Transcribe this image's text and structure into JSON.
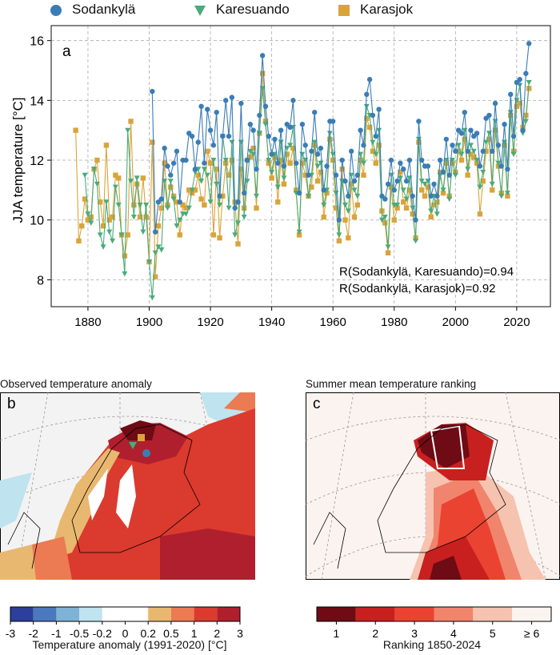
{
  "legend": {
    "items": [
      {
        "name": "Sodankylä",
        "marker": "circle",
        "color": "#3a7db6"
      },
      {
        "name": "Karesuando",
        "marker": "triangle-down",
        "color": "#4aab7b"
      },
      {
        "name": "Karasjok",
        "marker": "square",
        "color": "#d9a43a"
      }
    ]
  },
  "chart_data": [
    {
      "type": "line",
      "panel_label": "a",
      "ylabel": "JJA temperature [°C]",
      "xlim": [
        1868,
        2031
      ],
      "ylim": [
        7.1,
        16.5
      ],
      "xticks": [
        1880,
        1900,
        1920,
        1940,
        1960,
        1980,
        2000,
        2020
      ],
      "yticks": [
        8,
        10,
        12,
        14,
        16
      ],
      "grid": true,
      "annotations": [
        "R(Sodankylä, Karesuando)=0.94",
        "R(Sodankylä, Karasjok)=0.92"
      ],
      "series": [
        {
          "name": "Sodankylä",
          "x_start": 1901,
          "values": [
            14.3,
            9.6,
            10.6,
            10.7,
            12.4,
            11.8,
            11.5,
            11.9,
            12.3,
            10.6,
            12.0,
            12.0,
            12.9,
            12.8,
            11.7,
            12.6,
            13.8,
            11.9,
            13.7,
            13.0,
            12.5,
            13.6,
            10.8,
            12.8,
            14.0,
            12.8,
            14.1,
            10.4,
            10.6,
            13.9,
            10.9,
            12.0,
            13.2,
            13.0,
            11.7,
            13.5,
            15.5,
            13.8,
            12.8,
            12.2,
            12.7,
            11.9,
            13.0,
            11.8,
            13.2,
            13.1,
            14.0,
            11.9,
            10.9,
            13.2,
            12.5,
            11.5,
            12.3,
            13.6,
            12.2,
            12.4,
            11.0,
            11.8,
            13.3,
            13.3,
            11.5,
            10.0,
            12.0,
            11.3,
            10.8,
            12.3,
            11.3,
            11.5,
            13.0,
            12.5,
            14.2,
            14.7,
            13.5,
            12.8,
            13.7,
            10.8,
            10.7,
            11.2,
            12.0,
            11.0,
            11.3,
            11.9,
            11.7,
            11.3,
            12.0,
            10.8,
            10.0,
            13.3,
            12.0,
            11.8,
            11.8,
            10.8,
            11.2,
            10.8,
            12.0,
            11.6,
            12.7,
            11.5,
            12.5,
            12.3,
            13.0,
            12.9,
            13.6,
            12.3,
            13.0,
            12.8,
            12.9,
            11.8,
            12.3,
            13.4,
            13.5,
            12.3,
            13.9,
            12.5,
            11.8,
            13.2,
            11.7,
            14.2,
            12.8,
            14.6,
            14.7,
            13.0,
            14.9,
            15.9
          ]
        },
        {
          "name": "Karesuando",
          "x_start": 1879,
          "values": [
            11.5,
            10.2,
            9.9,
            11.7,
            11.2,
            9.5,
            9.1,
            10.6,
            9.6,
            9.3,
            11.1,
            10.5,
            9.5,
            8.2,
            13.0,
            11.3,
            10.1,
            11.4,
            10.5,
            9.6,
            10.5,
            8.6,
            7.4,
            8.9,
            9.1,
            9.0,
            11.3,
            10.4,
            11.3,
            10.7,
            9.8,
            10.0,
            10.2,
            10.2,
            10.4,
            11.0,
            11.6,
            11.7,
            11.3,
            11.7,
            11.5,
            10.6,
            12.0,
            11.2,
            10.5,
            12.8,
            12.0,
            10.4,
            12.6,
            9.5,
            9.9,
            12.6,
            10.1,
            11.3,
            12.3,
            12.2,
            10.8,
            12.9,
            14.4,
            13.2,
            12.0,
            11.6,
            12.2,
            11.1,
            12.6,
            11.4,
            12.4,
            12.5,
            13.1,
            10.9,
            9.6,
            12.2,
            12.0,
            10.8,
            11.5,
            12.6,
            11.8,
            11.9,
            10.5,
            11.0,
            12.9,
            12.2,
            10.9,
            9.5,
            11.3,
            10.5,
            10.3,
            11.5,
            11.0,
            10.8,
            12.2,
            11.9,
            13.8,
            13.5,
            12.6,
            12.2,
            13.0,
            10.0,
            10.1,
            9.1,
            11.5,
            10.5,
            10.5,
            11.4,
            11.0,
            10.7,
            11.4,
            10.4,
            9.3,
            12.7,
            11.3,
            11.2,
            11.3,
            10.3,
            10.8,
            10.2,
            11.5,
            11.0,
            12.0,
            10.7,
            12.0,
            11.5,
            12.5,
            12.2,
            13.0,
            11.7,
            12.5,
            12.3,
            12.0,
            11.1,
            11.6,
            12.6,
            12.9,
            11.2,
            13.3,
            11.9,
            10.8,
            12.6,
            10.9,
            13.6,
            12.2,
            14.0,
            14.5,
            12.9,
            13.3,
            14.6
          ]
        },
        {
          "name": "Karasjok",
          "x_start": 1876,
          "values": [
            13.0,
            9.3,
            9.8,
            10.7,
            10.0,
            10.1,
            11.7,
            12.0,
            10.6,
            9.8,
            12.5,
            10.0,
            10.1,
            11.5,
            11.4,
            9.5,
            8.8,
            9.5,
            13.3,
            10.5,
            11.2,
            10.1,
            11.4,
            10.1,
            8.6,
            12.6,
            8.1,
            9.8,
            10.4,
            11.9,
            10.5,
            11.1,
            10.8,
            10.6,
            9.5,
            10.5,
            10.4,
            11.0,
            10.9,
            11.0,
            11.5,
            10.7,
            10.5,
            12.3,
            11.9,
            9.5,
            11.7,
            9.4,
            10.8,
            11.9,
            11.5,
            12.0,
            10.6,
            9.2,
            11.7,
            10.4,
            12.0,
            12.1,
            12.4,
            10.4,
            12.9,
            14.9,
            13.3,
            11.9,
            11.4,
            12.1,
            10.6,
            12.0,
            11.2,
            12.2,
            11.9,
            12.4,
            11.0,
            9.5,
            11.9,
            11.5,
            10.8,
            11.1,
            12.5,
            11.3,
            11.6,
            10.1,
            10.9,
            12.7,
            12.0,
            10.4,
            9.3,
            11.7,
            10.0,
            9.4,
            11.2,
            10.1,
            10.5,
            12.0,
            11.5,
            13.4,
            13.1,
            12.3,
            11.9,
            12.5,
            10.3,
            9.9,
            8.9,
            11.1,
            10.0,
            10.4,
            11.6,
            10.6,
            10.4,
            11.0,
            10.2,
            9.4,
            12.6,
            11.0,
            10.8,
            11.1,
            10.1,
            10.5,
            10.6,
            11.6,
            10.9,
            11.9,
            10.8,
            11.9,
            11.6,
            12.3,
            12.0,
            12.7,
            11.5,
            12.2,
            12.1,
            11.9,
            10.2,
            11.3,
            12.3,
            12.7,
            11.0,
            13.0,
            11.8,
            10.9,
            12.5,
            10.8,
            13.5,
            12.3,
            13.8,
            13.9,
            13.1,
            13.5,
            14.4
          ]
        }
      ]
    },
    {
      "type": "heatmap",
      "title": "Observed temperature anomaly",
      "panel_label": "b",
      "colorbar": {
        "label": "Temperature anomaly (1991-2020) [°C]",
        "ticks": [
          "-3",
          "-2",
          "-1",
          "-0.5",
          "-0.2",
          "0",
          "0.2",
          "0.5",
          "1",
          "2",
          "3"
        ],
        "colors": [
          "#2c3f9a",
          "#4a79bd",
          "#7eb3d6",
          "#bfe3ef",
          "#ffffff",
          "#ffffff",
          "#e8b870",
          "#ec7a52",
          "#db3a2e",
          "#b01f2e"
        ]
      }
    },
    {
      "type": "heatmap",
      "title": "Summer mean temperature ranking",
      "panel_label": "c",
      "colorbar": {
        "label": "Ranking 1850-2024",
        "ticks": [
          "1",
          "2",
          "3",
          "4",
          "5",
          "≥ 6"
        ],
        "colors": [
          "#6e0b14",
          "#c8201f",
          "#eb4331",
          "#f1846c",
          "#f5c3b0",
          "#fbf3ef"
        ]
      }
    }
  ]
}
